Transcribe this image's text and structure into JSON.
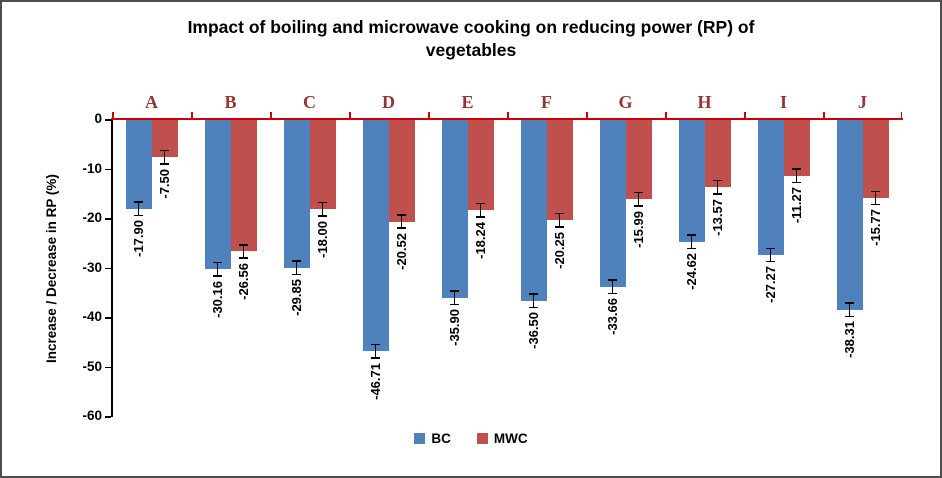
{
  "chart_data": {
    "type": "bar",
    "title": "Impact of boiling and microwave cooking on reducing power (RP) of vegetables",
    "title_lines": [
      "Impact of boiling and microwave cooking on reducing power (RP) of",
      "vegetables"
    ],
    "ylabel": "Increase / Decrease in RP (%)",
    "categories": [
      "A",
      "B",
      "C",
      "D",
      "E",
      "F",
      "G",
      "H",
      "I",
      "J"
    ],
    "series": [
      {
        "name": "BC",
        "color": "#4F81BD",
        "values": [
          -17.9,
          -30.16,
          -29.85,
          -46.71,
          -35.9,
          -36.5,
          -33.66,
          -24.62,
          -27.27,
          -38.31
        ],
        "labels": [
          "-17.90",
          "-30.16",
          "-29.85",
          "-46.71",
          "-35.90",
          "-36.50",
          "-33.66",
          "-24.62",
          "-27.27",
          "-38.31"
        ]
      },
      {
        "name": "MWC",
        "color": "#C0504D",
        "values": [
          -7.5,
          -26.56,
          -18.0,
          -20.52,
          -18.24,
          -20.25,
          -15.99,
          -13.57,
          -11.27,
          -15.77
        ],
        "labels": [
          "-7.50",
          "-26.56",
          "-18.00",
          "-20.52",
          "-18.24",
          "-20.25",
          "-15.99",
          "-13.57",
          "-11.27",
          "-15.77"
        ]
      }
    ],
    "ylim": [
      0,
      -60
    ],
    "yticks": [
      0,
      -10,
      -20,
      -30,
      -40,
      -50,
      -60
    ],
    "grid": false,
    "legend_position": "bottom",
    "error_bars": true,
    "data_labels_rotated": true,
    "colors": {
      "axis_line": "#CC0000",
      "category_label": "#943634",
      "bar_bc": "#4F81BD",
      "bar_mwc": "#C0504D"
    }
  }
}
